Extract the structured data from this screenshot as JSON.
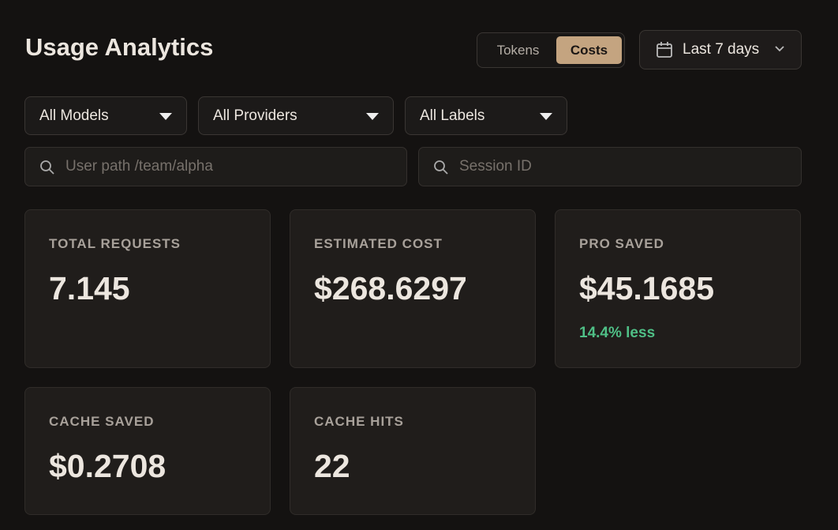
{
  "header": {
    "title": "Usage Analytics",
    "toggle": [
      "Tokens",
      "Costs"
    ],
    "date_range": "Last 7 days"
  },
  "filters": {
    "dropdowns": [
      "All Models",
      "All Providers",
      "All Labels"
    ],
    "search": [
      "User path /team/alpha",
      "Session ID"
    ]
  },
  "cards": [
    {
      "label": "TOTAL REQUESTS",
      "value": "7.145"
    },
    {
      "label": "ESTIMATED COST",
      "value": "$268.6297"
    },
    {
      "label": "PRO SAVED",
      "value": "$45.1685",
      "note": "14.4% less"
    },
    {
      "label": "CACHE SAVED",
      "value": "$0.2708"
    },
    {
      "label": "CACHE HITS",
      "value": "22"
    }
  ]
}
